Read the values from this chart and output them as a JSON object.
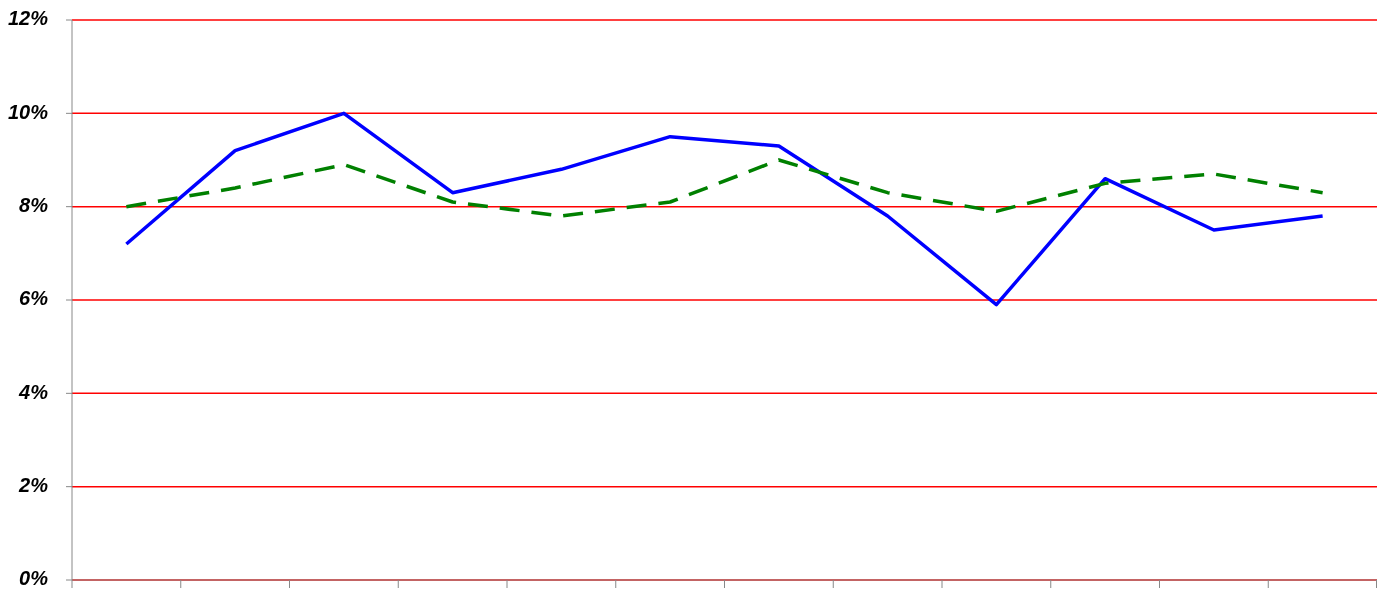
{
  "chart_data": {
    "type": "line",
    "categories": [
      null,
      null,
      null,
      null,
      null,
      null,
      null,
      null,
      null,
      null,
      null,
      null
    ],
    "series": [
      {
        "color": "#0000ff",
        "line_style": "solid",
        "values": [
          7.2,
          9.2,
          10.0,
          8.3,
          8.8,
          9.5,
          9.3,
          7.8,
          5.9,
          8.6,
          7.5,
          7.8
        ]
      },
      {
        "color": "#008000",
        "line_style": "dashed",
        "values": [
          8.0,
          8.4,
          8.9,
          8.1,
          7.8,
          8.1,
          9.0,
          8.3,
          7.9,
          8.5,
          8.7,
          8.3
        ]
      }
    ],
    "ylim": [
      0,
      12
    ],
    "yticks": [
      {
        "value": 0,
        "label": "0%"
      },
      {
        "value": 2,
        "label": "2%"
      },
      {
        "value": 4,
        "label": "4%"
      },
      {
        "value": 6,
        "label": "6%"
      },
      {
        "value": 8,
        "label": "8%"
      },
      {
        "value": 10,
        "label": "10%"
      },
      {
        "value": 12,
        "label": "12%"
      }
    ],
    "grid": "y"
  }
}
